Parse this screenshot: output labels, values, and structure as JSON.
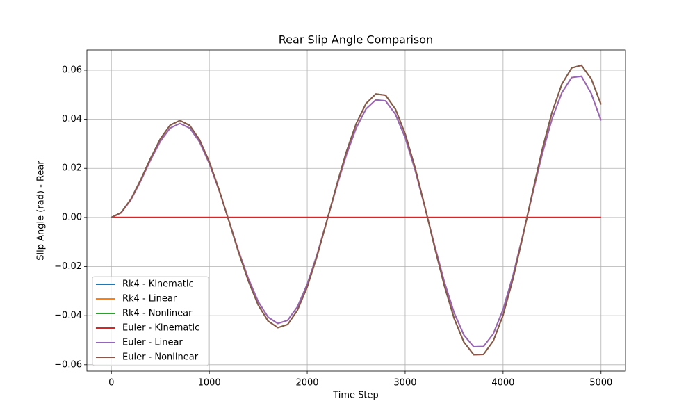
{
  "chart_data": {
    "type": "line",
    "title": "Rear Slip Angle Comparison",
    "x_label": "Time Step",
    "y_label": "Slip Angle (rad) - Rear",
    "x": [
      0,
      100,
      200,
      300,
      400,
      500,
      600,
      700,
      800,
      900,
      1000,
      1100,
      1200,
      1300,
      1400,
      1500,
      1600,
      1700,
      1800,
      1900,
      2000,
      2100,
      2200,
      2300,
      2400,
      2500,
      2600,
      2700,
      2800,
      2900,
      3000,
      3100,
      3200,
      3300,
      3400,
      3500,
      3600,
      3700,
      3800,
      3900,
      4000,
      4100,
      4200,
      4300,
      4400,
      4500,
      4600,
      4700,
      4800,
      4900,
      5000
    ],
    "series": [
      {
        "name": "Rk4 - Kinematic",
        "color": "#1f77b4",
        "values": [
          0,
          0,
          0,
          0,
          0,
          0,
          0,
          0,
          0,
          0,
          0,
          0,
          0,
          0,
          0,
          0,
          0,
          0,
          0,
          0,
          0,
          0,
          0,
          0,
          0,
          0,
          0,
          0,
          0,
          0,
          0,
          0,
          0,
          0,
          0,
          0,
          0,
          0,
          0,
          0,
          0,
          0,
          0,
          0,
          0,
          0,
          0,
          0,
          0,
          0,
          0
        ]
      },
      {
        "name": "Rk4 - Linear",
        "color": "#ff7f0e",
        "values": [
          0,
          0.0019,
          0.0072,
          0.0149,
          0.0234,
          0.031,
          0.0364,
          0.0383,
          0.0364,
          0.0308,
          0.022,
          0.011,
          -0.0013,
          -0.0138,
          -0.025,
          -0.0343,
          -0.0406,
          -0.0432,
          -0.0419,
          -0.0364,
          -0.0272,
          -0.0152,
          -0.0014,
          0.0125,
          0.0255,
          0.0364,
          0.0442,
          0.0479,
          0.0475,
          0.0421,
          0.0325,
          0.0195,
          0.0044,
          -0.0113,
          -0.0262,
          -0.0388,
          -0.0479,
          -0.0527,
          -0.0526,
          -0.0474,
          -0.0375,
          -0.0238,
          -0.0075,
          0.0095,
          0.0259,
          0.0402,
          0.0508,
          0.057,
          0.0575,
          0.0505,
          0.0395
        ]
      },
      {
        "name": "Rk4 - Nonlinear",
        "color": "#2ca02c",
        "values": [
          0,
          0.002,
          0.0075,
          0.0154,
          0.0241,
          0.032,
          0.0376,
          0.0395,
          0.0375,
          0.0317,
          0.0227,
          0.0113,
          -0.0014,
          -0.0143,
          -0.026,
          -0.0357,
          -0.0422,
          -0.0449,
          -0.0436,
          -0.0378,
          -0.0283,
          -0.0158,
          -0.0015,
          0.0131,
          0.0268,
          0.0382,
          0.0464,
          0.0503,
          0.0498,
          0.0442,
          0.0341,
          0.0205,
          0.0046,
          -0.012,
          -0.0278,
          -0.0411,
          -0.0508,
          -0.0559,
          -0.0558,
          -0.0503,
          -0.0398,
          -0.0252,
          -0.008,
          0.0102,
          0.0277,
          0.0429,
          0.0543,
          0.0609,
          0.062,
          0.0565,
          0.046
        ]
      },
      {
        "name": "Euler - Kinematic",
        "color": "#d62728",
        "values": [
          0,
          0,
          0,
          0,
          0,
          0,
          0,
          0,
          0,
          0,
          0,
          0,
          0,
          0,
          0,
          0,
          0,
          0,
          0,
          0,
          0,
          0,
          0,
          0,
          0,
          0,
          0,
          0,
          0,
          0,
          0,
          0,
          0,
          0,
          0,
          0,
          0,
          0,
          0,
          0,
          0,
          0,
          0,
          0,
          0,
          0,
          0,
          0,
          0,
          0,
          0
        ]
      },
      {
        "name": "Euler - Linear",
        "color": "#9467bd",
        "values": [
          0,
          0.0019,
          0.0072,
          0.0149,
          0.0234,
          0.031,
          0.0364,
          0.0383,
          0.0364,
          0.0308,
          0.022,
          0.011,
          -0.0013,
          -0.0138,
          -0.025,
          -0.0343,
          -0.0406,
          -0.0432,
          -0.0419,
          -0.0364,
          -0.0272,
          -0.0152,
          -0.0014,
          0.0125,
          0.0255,
          0.0364,
          0.0442,
          0.0479,
          0.0475,
          0.0421,
          0.0325,
          0.0195,
          0.0044,
          -0.0113,
          -0.0262,
          -0.0388,
          -0.0479,
          -0.0527,
          -0.0526,
          -0.0474,
          -0.0375,
          -0.0238,
          -0.0075,
          0.0095,
          0.0259,
          0.0402,
          0.0508,
          0.057,
          0.0575,
          0.0505,
          0.0395
        ]
      },
      {
        "name": "Euler - Nonlinear",
        "color": "#8c564b",
        "values": [
          0,
          0.002,
          0.0075,
          0.0154,
          0.0241,
          0.032,
          0.0376,
          0.0395,
          0.0375,
          0.0317,
          0.0227,
          0.0113,
          -0.0014,
          -0.0143,
          -0.026,
          -0.0357,
          -0.0422,
          -0.0449,
          -0.0436,
          -0.0378,
          -0.0283,
          -0.0158,
          -0.0015,
          0.0131,
          0.0268,
          0.0382,
          0.0464,
          0.0503,
          0.0498,
          0.0442,
          0.0341,
          0.0205,
          0.0046,
          -0.012,
          -0.0278,
          -0.0411,
          -0.0508,
          -0.0559,
          -0.0558,
          -0.0503,
          -0.0398,
          -0.0252,
          -0.008,
          0.0102,
          0.0277,
          0.0429,
          0.0543,
          0.0609,
          0.062,
          0.0565,
          0.046
        ]
      }
    ],
    "xlim": [
      -250,
      5250
    ],
    "ylim": [
      -0.0626,
      0.0682
    ],
    "xticks": [
      0,
      1000,
      2000,
      3000,
      4000,
      5000
    ],
    "yticks": [
      {
        "value": -0.06,
        "label": "−0.06"
      },
      {
        "value": -0.04,
        "label": "−0.04"
      },
      {
        "value": -0.02,
        "label": "−0.02"
      },
      {
        "value": 0,
        "label": "0.00"
      },
      0.02,
      0.04,
      0.06
    ],
    "grid": true,
    "legend": "lower left"
  }
}
